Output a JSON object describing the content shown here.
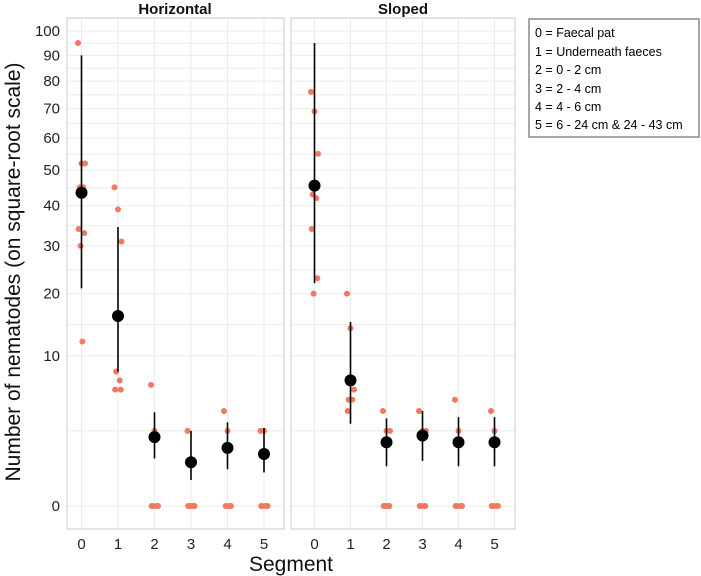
{
  "chart_data": {
    "type": "scatter",
    "ylabel": "Number of nematodes (on square-root scale)",
    "xlabel": "Segment",
    "y_scale": "sqrt",
    "ylim": [
      0,
      100
    ],
    "y_ticks": [
      0,
      10,
      20,
      30,
      40,
      50,
      60,
      70,
      80,
      90,
      100
    ],
    "x_categories": [
      "0",
      "1",
      "2",
      "3",
      "4",
      "5"
    ],
    "colors": {
      "raw_points": "#ef7a5f",
      "mean_points": "#000000",
      "error_bars": "#000000",
      "grid": "#ebebeb",
      "panel_border": "#c8c8c8"
    },
    "facets": [
      {
        "title": "Horizontal",
        "summary": [
          {
            "segment": 0,
            "mean": 43.5,
            "lower": 21,
            "upper": 90
          },
          {
            "segment": 1,
            "mean": 16,
            "lower": 8,
            "upper": 34.5
          },
          {
            "segment": 2,
            "mean": 2.1,
            "lower": 1,
            "upper": 3.9
          },
          {
            "segment": 3,
            "mean": 0.85,
            "lower": 0.3,
            "upper": 2.5
          },
          {
            "segment": 4,
            "mean": 1.5,
            "lower": 0.6,
            "upper": 3.1
          },
          {
            "segment": 5,
            "mean": 1.2,
            "lower": 0.5,
            "upper": 2.7
          }
        ],
        "raw": [
          {
            "segment": 0,
            "values": [
              95,
              52,
              52,
              45,
              45,
              34,
              33,
              30,
              12
            ]
          },
          {
            "segment": 1,
            "values": [
              45,
              39,
              31,
              8,
              7,
              6,
              6
            ]
          },
          {
            "segment": 2,
            "values": [
              6.5,
              2.5,
              0,
              0,
              0,
              0
            ]
          },
          {
            "segment": 3,
            "values": [
              2.5,
              0,
              0,
              0,
              0,
              0
            ]
          },
          {
            "segment": 4,
            "values": [
              4,
              2.5,
              0,
              0,
              0
            ]
          },
          {
            "segment": 5,
            "values": [
              2.5,
              2.5,
              0,
              0,
              0,
              0
            ]
          }
        ]
      },
      {
        "title": "Sloped",
        "summary": [
          {
            "segment": 0,
            "mean": 45.5,
            "lower": 22,
            "upper": 95
          },
          {
            "segment": 1,
            "mean": 7,
            "lower": 3,
            "upper": 15
          },
          {
            "segment": 2,
            "mean": 1.8,
            "lower": 0.7,
            "upper": 3.4
          },
          {
            "segment": 3,
            "mean": 2.2,
            "lower": 0.9,
            "upper": 4
          },
          {
            "segment": 4,
            "mean": 1.8,
            "lower": 0.7,
            "upper": 3.5
          },
          {
            "segment": 5,
            "mean": 1.8,
            "lower": 0.7,
            "upper": 3.5
          }
        ],
        "raw": [
          {
            "segment": 0,
            "values": [
              76,
              69,
              55,
              43,
              42,
              34,
              23,
              20
            ]
          },
          {
            "segment": 1,
            "values": [
              20,
              14,
              6,
              5,
              5,
              4
            ]
          },
          {
            "segment": 2,
            "values": [
              4,
              2.5,
              2.5,
              0,
              0,
              0,
              0,
              0
            ]
          },
          {
            "segment": 3,
            "values": [
              4,
              2.5,
              2.5,
              0,
              0,
              0,
              0
            ]
          },
          {
            "segment": 4,
            "values": [
              5,
              2.5,
              0,
              0,
              0,
              0
            ]
          },
          {
            "segment": 5,
            "values": [
              4,
              2.5,
              0,
              0,
              0,
              0
            ]
          }
        ]
      }
    ],
    "legend": {
      "position": "top-right",
      "entries": [
        "0 = Faecal pat",
        "1 = Underneath faeces",
        "2 = 0 - 2 cm",
        "3 = 2 - 4 cm",
        "4 = 4 - 6 cm",
        "5 = 6 - 24 cm & 24 - 43 cm"
      ]
    }
  }
}
